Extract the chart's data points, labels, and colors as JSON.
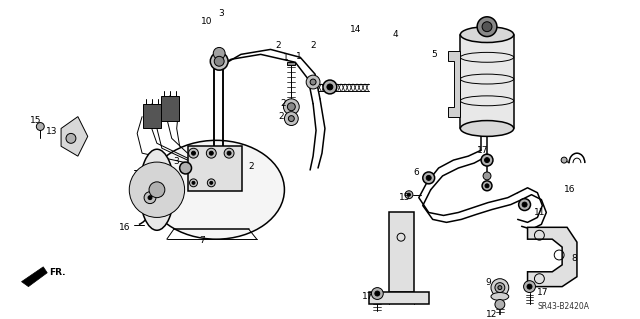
{
  "background_color": "#ffffff",
  "diagram_code": "SR43-B2420A",
  "fig_width": 6.4,
  "fig_height": 3.19,
  "dpi": 100,
  "lw_thin": 0.7,
  "lw_med": 1.1,
  "lw_thick": 1.8,
  "gray_fill": "#d8d8d8",
  "light_fill": "#f0f0f0",
  "mid_fill": "#c0c0c0"
}
